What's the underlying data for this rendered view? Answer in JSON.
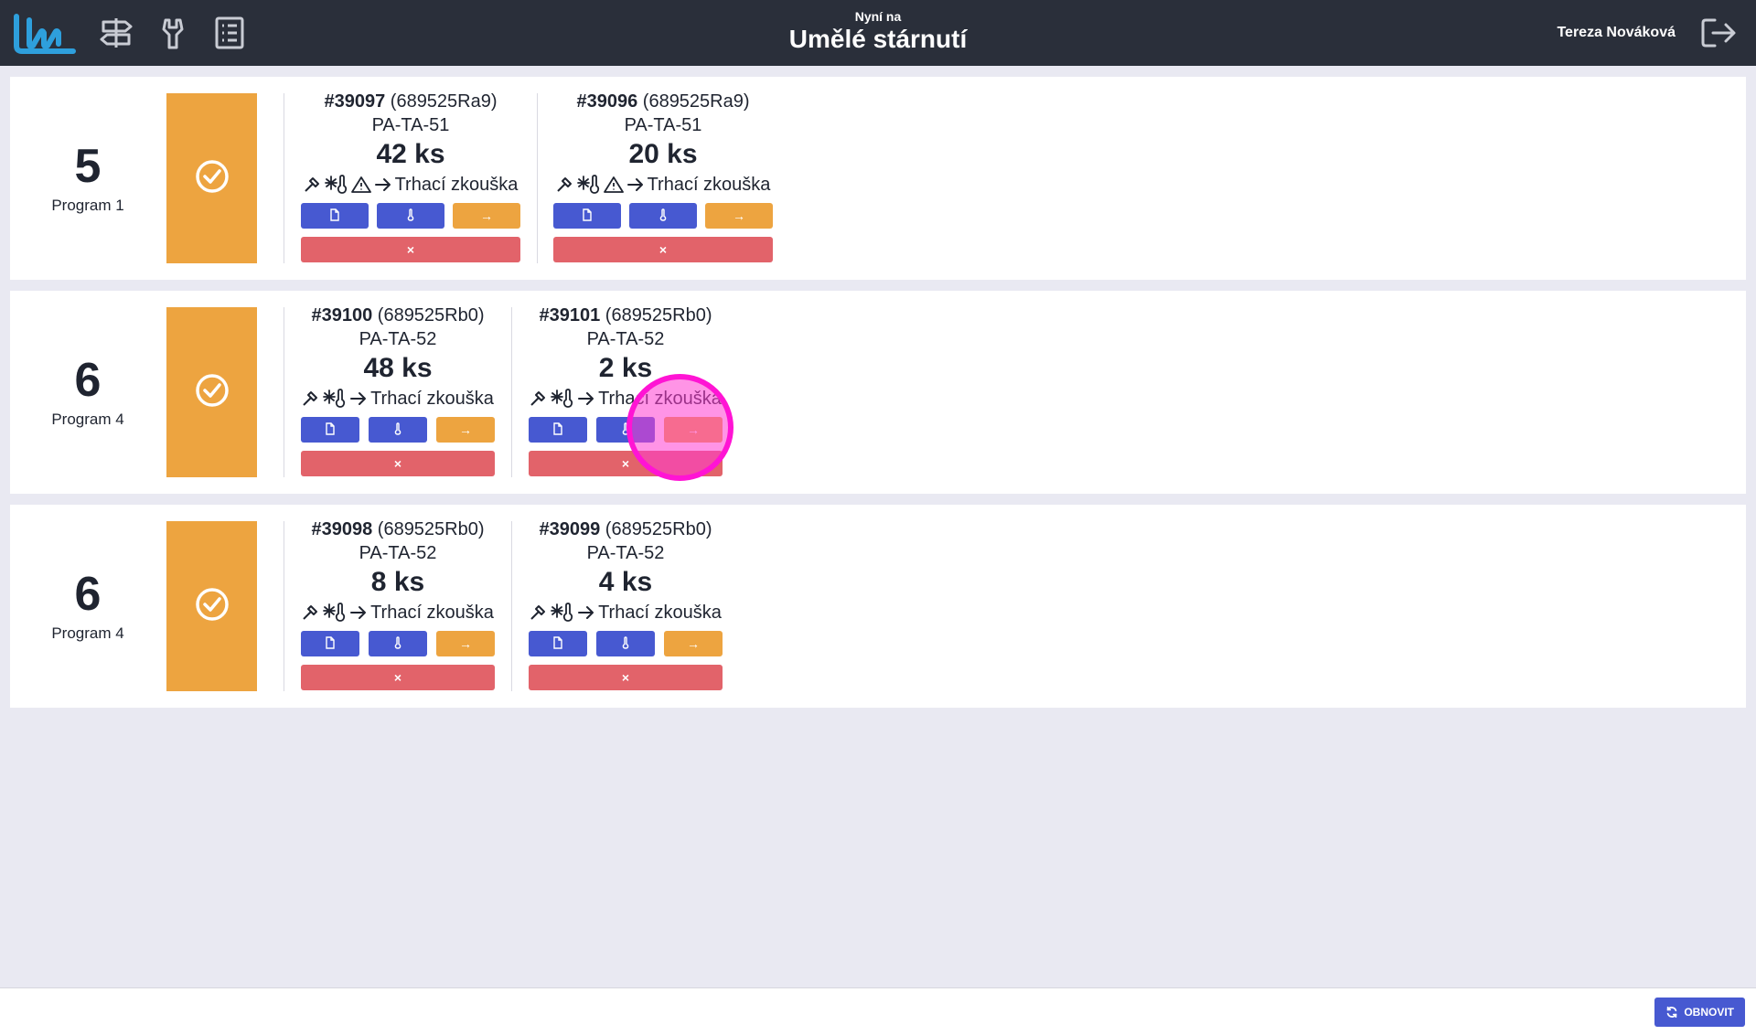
{
  "header": {
    "subtitle": "Nyní na",
    "title": "Umělé stárnutí",
    "user_name": "Tereza Nováková",
    "nav_icons": [
      "signpost-icon",
      "tool-icon",
      "list-icon"
    ],
    "logout_icon": "logout-icon",
    "colors": {
      "bar": "#2a2f3a",
      "logo": "#2e9fdc"
    }
  },
  "rows": [
    {
      "number": "5",
      "program": "Program 1",
      "status_icon": "check-circle-icon",
      "orders": [
        {
          "id": "#39097",
          "code": "(689525Ra9)",
          "part": "PA-TA-51",
          "qty": "42 ks",
          "has_warning": true,
          "next_step": "Trhací zkouška"
        },
        {
          "id": "#39096",
          "code": "(689525Ra9)",
          "part": "PA-TA-51",
          "qty": "20 ks",
          "has_warning": true,
          "next_step": "Trhací zkouška"
        }
      ]
    },
    {
      "number": "6",
      "program": "Program 4",
      "status_icon": "check-circle-icon",
      "orders": [
        {
          "id": "#39100",
          "code": "(689525Rb0)",
          "part": "PA-TA-52",
          "qty": "48 ks",
          "has_warning": false,
          "next_step": "Trhací zkouška"
        },
        {
          "id": "#39101",
          "code": "(689525Rb0)",
          "part": "PA-TA-52",
          "qty": "2 ks",
          "has_warning": false,
          "next_step": "Trhací zkouška"
        }
      ]
    },
    {
      "number": "6",
      "program": "Program 4",
      "status_icon": "check-circle-icon",
      "orders": [
        {
          "id": "#39098",
          "code": "(689525Rb0)",
          "part": "PA-TA-52",
          "qty": "8 ks",
          "has_warning": false,
          "next_step": "Trhací zkouška"
        },
        {
          "id": "#39099",
          "code": "(689525Rb0)",
          "part": "PA-TA-52",
          "qty": "4 ks",
          "has_warning": false,
          "next_step": "Trhací zkouška"
        }
      ]
    }
  ],
  "buttons": {
    "document_icon": "document-icon",
    "thermometer_icon": "thermometer-icon",
    "next_label": "→",
    "remove_label": "×",
    "colors": {
      "blue": "#4759d1",
      "orange": "#eda440",
      "red": "#e2636a"
    }
  },
  "footer": {
    "refresh_label": "OBNOVIT",
    "refresh_icon": "refresh-icon"
  }
}
